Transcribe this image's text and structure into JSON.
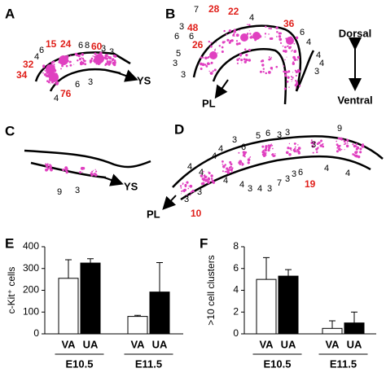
{
  "orientation": {
    "top": "Dorsal",
    "bottom": "Ventral"
  },
  "panels": [
    {
      "label": "A",
      "site": "YS",
      "black_counts": [
        4,
        6,
        6,
        8,
        3,
        3,
        6,
        3,
        4
      ],
      "red_counts": [
        15,
        24,
        60,
        32,
        34,
        76
      ]
    },
    {
      "label": "B",
      "site": "PL",
      "black_counts": [
        7,
        4,
        3,
        6,
        6,
        5,
        3,
        3,
        6,
        4,
        4,
        4,
        3
      ],
      "red_counts": [
        28,
        22,
        48,
        26,
        36
      ]
    },
    {
      "label": "C",
      "site": "YS",
      "black_counts": [
        9,
        3
      ],
      "red_counts": []
    },
    {
      "label": "D",
      "site": "PL",
      "black_counts": [
        3,
        6,
        5,
        6,
        3,
        3,
        3,
        9,
        4,
        4,
        4,
        4,
        3,
        4,
        4,
        3,
        4,
        3,
        7,
        3,
        3,
        6,
        4,
        4,
        3
      ],
      "red_counts": [
        19,
        10
      ]
    }
  ],
  "chart_data": [
    {
      "type": "bar",
      "title": "E",
      "y_label": "c-Kit⁺ cells",
      "categories": [
        "E10.5",
        "E11.5"
      ],
      "series": [
        {
          "name": "VA",
          "color": "#ffffff",
          "values": [
            255,
            80
          ],
          "errors": [
            85,
            5
          ]
        },
        {
          "name": "UA",
          "color": "#000000",
          "values": [
            325,
            192
          ],
          "errors": [
            20,
            135
          ]
        }
      ],
      "ylim": [
        0,
        400
      ],
      "yticks": [
        0,
        100,
        200,
        300,
        400
      ]
    },
    {
      "type": "bar",
      "title": "F",
      "y_label": ">10 cell clusters",
      "categories": [
        "E10.5",
        "E11.5"
      ],
      "series": [
        {
          "name": "VA",
          "color": "#ffffff",
          "values": [
            5.0,
            0.5
          ],
          "errors": [
            2.0,
            0.7
          ]
        },
        {
          "name": "UA",
          "color": "#000000",
          "values": [
            5.3,
            1.0
          ],
          "errors": [
            0.6,
            1.0
          ]
        }
      ],
      "ylim": [
        0,
        8
      ],
      "yticks": [
        0,
        2,
        4,
        6,
        8
      ]
    }
  ]
}
